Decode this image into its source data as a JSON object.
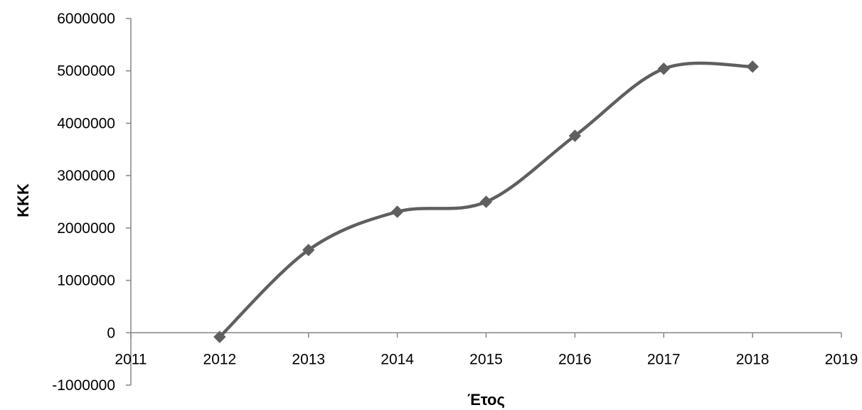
{
  "chart_data": {
    "type": "line",
    "title": "",
    "xlabel": "Έτος",
    "ylabel": "ΚΚΚ",
    "xlim": [
      2011,
      2019
    ],
    "ylim": [
      -1000000,
      6000000
    ],
    "x_ticks": [
      2011,
      2012,
      2013,
      2014,
      2015,
      2016,
      2017,
      2018,
      2019
    ],
    "y_ticks": [
      -1000000,
      0,
      1000000,
      2000000,
      3000000,
      4000000,
      5000000,
      6000000
    ],
    "grid": false,
    "legend": "none",
    "smooth": true,
    "marker": "diamond",
    "line_color": "#5f5f5f",
    "axis_color": "#868686",
    "series": [
      {
        "x": [
          2012,
          2013,
          2014,
          2015,
          2016,
          2017,
          2018
        ],
        "values": [
          -80000,
          1580000,
          2310000,
          2500000,
          3760000,
          5040000,
          5080000
        ]
      }
    ]
  }
}
